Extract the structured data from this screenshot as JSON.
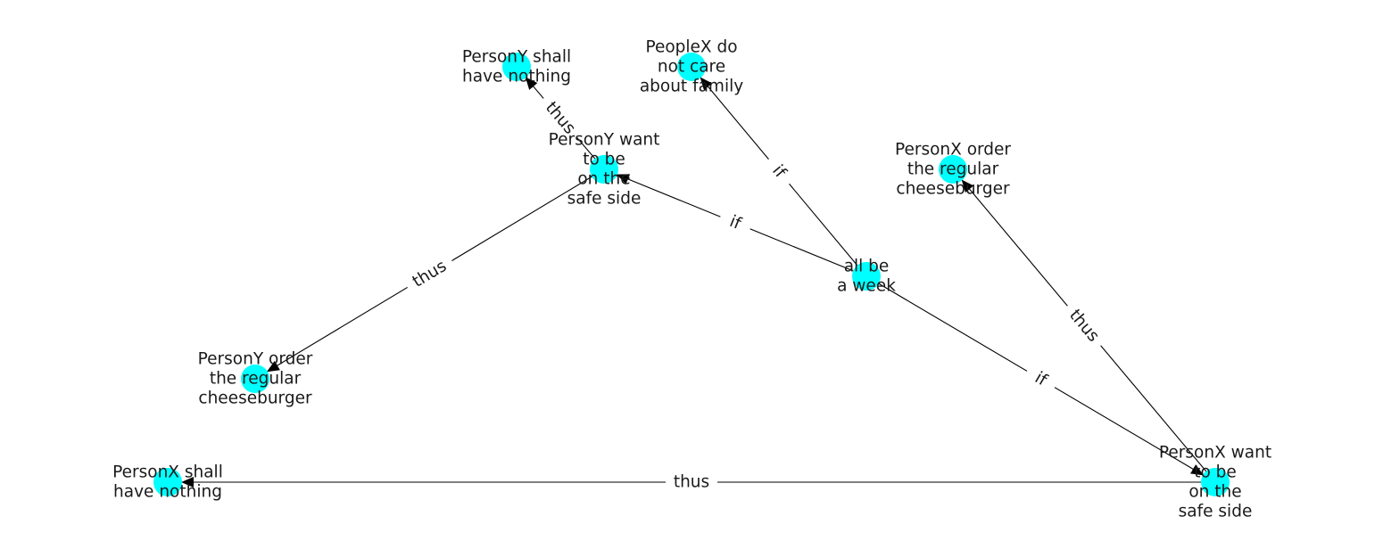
{
  "colors": {
    "node": "#00ffff",
    "edge": "#000000",
    "text": "#1a1a1a"
  },
  "nodes": [
    {
      "id": "n_y_nothing",
      "lines": [
        "PersonY shall",
        "have nothing"
      ]
    },
    {
      "id": "n_people_x",
      "lines": [
        "PeopleX do",
        "not care",
        "about family"
      ]
    },
    {
      "id": "n_y_want",
      "lines": [
        "PersonY want",
        "to be",
        "on the",
        "safe side"
      ]
    },
    {
      "id": "n_x_order",
      "lines": [
        "PersonX order",
        "the regular",
        "cheeseburger"
      ]
    },
    {
      "id": "n_all_week",
      "lines": [
        "all be",
        "a week"
      ]
    },
    {
      "id": "n_y_order",
      "lines": [
        "PersonY order",
        "the regular",
        "cheeseburger"
      ]
    },
    {
      "id": "n_x_nothing",
      "lines": [
        "PersonX shall",
        "have nothing"
      ]
    },
    {
      "id": "n_x_want",
      "lines": [
        "PersonX want",
        "to be",
        "on the",
        "safe side"
      ]
    }
  ],
  "edges": [
    {
      "from": "n_y_want",
      "to": "n_y_nothing",
      "label": "thus"
    },
    {
      "from": "n_y_want",
      "to": "n_y_order",
      "label": "thus"
    },
    {
      "from": "n_all_week",
      "to": "n_people_x",
      "label": "if"
    },
    {
      "from": "n_all_week",
      "to": "n_y_want",
      "label": "if"
    },
    {
      "from": "n_all_week",
      "to": "n_x_want",
      "label": "if"
    },
    {
      "from": "n_x_want",
      "to": "n_x_order",
      "label": "thus"
    },
    {
      "from": "n_x_want",
      "to": "n_x_nothing",
      "label": "thus"
    }
  ]
}
